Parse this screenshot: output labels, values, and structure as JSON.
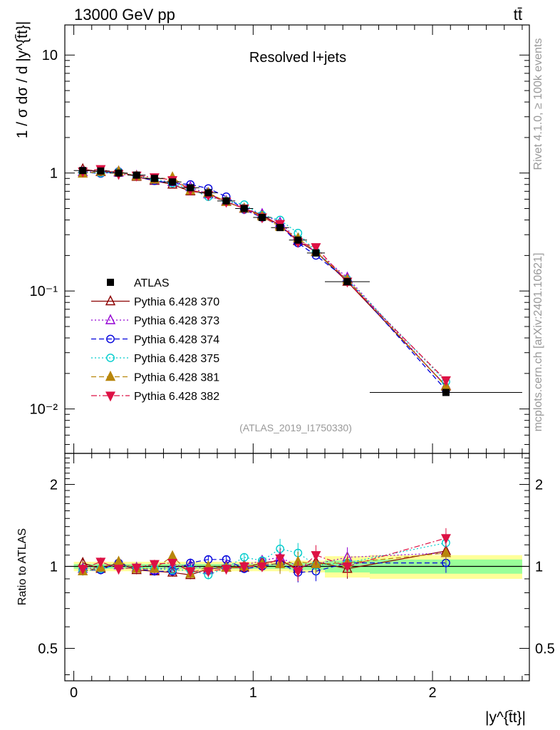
{
  "header": {
    "energy_label": "13000 GeV pp",
    "process_label": "tt̄"
  },
  "side_labels": {
    "rivet": "Rivet 4.1.0, ≥ 100k events",
    "mcplots": "mcplots.cern.ch [arXiv:2401.10621]"
  },
  "colors": {
    "data": "#000000",
    "band_outer": "#ffff99",
    "band_inner": "#99ff99"
  },
  "chart_data": [
    {
      "type": "line",
      "panel": "main",
      "title": "Resolved l+jets",
      "analysis_label": "(ATLAS_2019_I1750330)",
      "ylabel": "1 / σ dσ / d |y^{t̄t}|",
      "xlabel": "|y^{t̄t}|",
      "yscale": "log",
      "xlim": [
        -0.05,
        2.54
      ],
      "ylim": [
        0.0042,
        18
      ],
      "yticks": [
        {
          "value": 10,
          "label": "10"
        },
        {
          "value": 1,
          "label": "1"
        },
        {
          "value": 0.1,
          "label": "10⁻¹"
        },
        {
          "value": 0.01,
          "label": "10⁻²"
        }
      ],
      "x": [
        0.05,
        0.15,
        0.25,
        0.35,
        0.45,
        0.55,
        0.65,
        0.75,
        0.85,
        0.95,
        1.05,
        1.15,
        1.25,
        1.35,
        1.525,
        2.075
      ],
      "data": {
        "name": "ATLAS",
        "values": [
          1.05,
          1.04,
          1.0,
          0.96,
          0.9,
          0.84,
          0.75,
          0.68,
          0.58,
          0.5,
          0.42,
          0.345,
          0.27,
          0.21,
          0.12,
          0.0138
        ],
        "bin_edges": [
          0.0,
          0.1,
          0.2,
          0.3,
          0.4,
          0.5,
          0.6,
          0.7,
          0.8,
          0.9,
          1.0,
          1.1,
          1.2,
          1.3,
          1.4,
          1.65,
          2.5
        ]
      },
      "series": [
        {
          "name": "Pythia 6.428 370",
          "color": "#8b0000",
          "marker": "triangle-open",
          "dash": "solid",
          "values": [
            1.08,
            1.02,
            1.03,
            0.93,
            0.86,
            0.8,
            0.7,
            0.67,
            0.57,
            0.5,
            0.44,
            0.36,
            0.265,
            0.215,
            0.12,
            0.0157
          ]
        },
        {
          "name": "Pythia 6.428 373",
          "color": "#9400d3",
          "marker": "triangle-open",
          "dash": "dot",
          "values": [
            1.02,
            1.03,
            1.01,
            0.95,
            0.87,
            0.84,
            0.76,
            0.66,
            0.58,
            0.5,
            0.45,
            0.38,
            0.27,
            0.215,
            0.13,
            0.0155
          ]
        },
        {
          "name": "Pythia 6.428 374",
          "color": "#0000dd",
          "marker": "circle-open",
          "dash": "dash",
          "values": [
            1.02,
            0.99,
            1.03,
            0.94,
            0.86,
            0.82,
            0.8,
            0.74,
            0.63,
            0.49,
            0.42,
            0.36,
            0.255,
            0.2,
            0.125,
            0.0145
          ]
        },
        {
          "name": "Pythia 6.428 375",
          "color": "#00cccc",
          "marker": "circle-open",
          "dash": "dot",
          "values": [
            1.01,
            1.0,
            1.02,
            0.95,
            0.88,
            0.82,
            0.73,
            0.63,
            0.58,
            0.54,
            0.44,
            0.4,
            0.31,
            0.215,
            0.125,
            0.017
          ]
        },
        {
          "name": "Pythia 6.428 381",
          "color": "#b8860b",
          "marker": "triangle-filled",
          "dash": "dash",
          "values": [
            0.99,
            1.03,
            1.03,
            0.94,
            0.88,
            0.92,
            0.71,
            0.68,
            0.57,
            0.5,
            0.43,
            0.35,
            0.28,
            0.215,
            0.125,
            0.0155
          ]
        },
        {
          "name": "Pythia 6.428 382",
          "color": "#dd1144",
          "marker": "triangle-down-filled",
          "dash": "dashdot",
          "values": [
            1.03,
            1.08,
            0.98,
            0.95,
            0.92,
            0.87,
            0.72,
            0.65,
            0.57,
            0.5,
            0.42,
            0.37,
            0.26,
            0.235,
            0.12,
            0.0175
          ]
        }
      ]
    },
    {
      "type": "line",
      "panel": "ratio",
      "ylabel": "Ratio to ATLAS",
      "yscale": "log",
      "xlim": [
        -0.05,
        2.54
      ],
      "ylim": [
        0.38,
        2.6
      ],
      "yticks": [
        {
          "value": 2,
          "label": "2"
        },
        {
          "value": 1,
          "label": "1"
        },
        {
          "value": 0.5,
          "label": "0.5"
        }
      ],
      "xticks": [
        {
          "value": 0,
          "label": "0"
        },
        {
          "value": 1,
          "label": "1"
        },
        {
          "value": 2,
          "label": "2"
        }
      ],
      "x": [
        0.05,
        0.15,
        0.25,
        0.35,
        0.45,
        0.55,
        0.65,
        0.75,
        0.85,
        0.95,
        1.05,
        1.15,
        1.25,
        1.35,
        1.525,
        2.075
      ],
      "band": {
        "bin_edges": [
          0.0,
          0.1,
          0.2,
          0.3,
          0.4,
          0.5,
          0.6,
          0.7,
          0.8,
          0.9,
          1.0,
          1.1,
          1.2,
          1.3,
          1.4,
          1.65,
          2.5
        ],
        "inner": [
          0.02,
          0.02,
          0.02,
          0.02,
          0.02,
          0.02,
          0.02,
          0.02,
          0.02,
          0.02,
          0.02,
          0.02,
          0.03,
          0.03,
          0.05,
          0.06
        ],
        "outer": [
          0.04,
          0.04,
          0.04,
          0.04,
          0.04,
          0.04,
          0.04,
          0.04,
          0.04,
          0.04,
          0.04,
          0.04,
          0.05,
          0.05,
          0.09,
          0.1
        ]
      },
      "series": [
        {
          "name": "Pythia 6.428 370",
          "values": [
            1.03,
            0.98,
            1.03,
            0.97,
            0.96,
            0.95,
            0.93,
            0.98,
            0.99,
            0.99,
            1.03,
            1.05,
            0.98,
            1.04,
            0.98,
            1.14
          ]
        },
        {
          "name": "Pythia 6.428 373",
          "values": [
            0.98,
            0.99,
            1.01,
            0.99,
            0.97,
            1.0,
            1.01,
            0.97,
            1.01,
            1.01,
            1.05,
            1.08,
            1.0,
            1.02,
            1.08,
            1.12
          ]
        },
        {
          "name": "Pythia 6.428 374",
          "values": [
            0.97,
            0.97,
            1.03,
            0.98,
            0.96,
            0.96,
            1.03,
            1.06,
            1.06,
            0.98,
            1.0,
            1.03,
            0.95,
            0.96,
            1.03,
            1.03
          ]
        },
        {
          "name": "Pythia 6.428 375",
          "values": [
            0.96,
            0.98,
            1.01,
            0.99,
            0.98,
            0.97,
            0.97,
            0.93,
            0.99,
            1.08,
            1.05,
            1.16,
            1.12,
            1.01,
            1.03,
            1.22
          ]
        },
        {
          "name": "Pythia 6.428 381",
          "values": [
            0.96,
            0.99,
            1.04,
            0.98,
            0.98,
            1.09,
            0.94,
            1.0,
            0.99,
            1.0,
            1.02,
            1.02,
            1.04,
            1.02,
            1.03,
            1.12
          ]
        },
        {
          "name": "Pythia 6.428 382",
          "values": [
            0.98,
            1.04,
            0.98,
            0.99,
            1.02,
            1.03,
            0.96,
            0.96,
            0.98,
            1.0,
            1.0,
            1.07,
            0.96,
            1.1,
            1.0,
            1.27
          ]
        }
      ]
    }
  ]
}
